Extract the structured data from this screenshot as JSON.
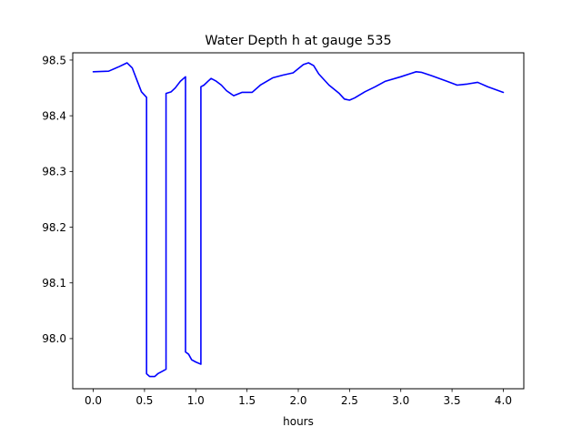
{
  "chart_data": {
    "type": "line",
    "title": "Water Depth h at gauge 535",
    "xlabel": "hours",
    "ylabel": "",
    "xlim": [
      -0.2,
      4.2
    ],
    "ylim": [
      97.91,
      98.513
    ],
    "xticks": [
      0.0,
      0.5,
      1.0,
      1.5,
      2.0,
      2.5,
      3.0,
      3.5,
      4.0
    ],
    "xtick_labels": [
      "0.0",
      "0.5",
      "1.0",
      "1.5",
      "2.0",
      "2.5",
      "3.0",
      "3.5",
      "4.0"
    ],
    "yticks": [
      98.0,
      98.1,
      98.2,
      98.3,
      98.4,
      98.5
    ],
    "ytick_labels": [
      "98.0",
      "98.1",
      "98.2",
      "98.3",
      "98.4",
      "98.5"
    ],
    "grid": false,
    "legend": "none",
    "series": [
      {
        "color": "#0000ff",
        "x": [
          0.0,
          0.15,
          0.25,
          0.33,
          0.38,
          0.43,
          0.47,
          0.52,
          0.52,
          0.55,
          0.6,
          0.63,
          0.67,
          0.71,
          0.71,
          0.76,
          0.8,
          0.85,
          0.9,
          0.9,
          0.93,
          0.96,
          1.0,
          1.05,
          1.05,
          1.08,
          1.12,
          1.15,
          1.2,
          1.25,
          1.3,
          1.37,
          1.45,
          1.55,
          1.63,
          1.75,
          1.85,
          1.95,
          2.05,
          2.1,
          2.15,
          2.2,
          2.3,
          2.4,
          2.45,
          2.5,
          2.55,
          2.65,
          2.75,
          2.85,
          3.0,
          3.1,
          3.15,
          3.2,
          3.3,
          3.45,
          3.55,
          3.65,
          3.75,
          3.85,
          4.0
        ],
        "y": [
          98.479,
          98.48,
          98.488,
          98.495,
          98.486,
          98.462,
          98.443,
          98.433,
          97.937,
          97.932,
          97.932,
          97.937,
          97.941,
          97.945,
          98.44,
          98.443,
          98.45,
          98.462,
          98.47,
          97.976,
          97.972,
          97.962,
          97.958,
          97.954,
          98.452,
          98.455,
          98.462,
          98.467,
          98.462,
          98.455,
          98.445,
          98.436,
          98.442,
          98.442,
          98.455,
          98.468,
          98.473,
          98.477,
          98.492,
          98.495,
          98.49,
          98.475,
          98.455,
          98.44,
          98.43,
          98.428,
          98.432,
          98.443,
          98.452,
          98.462,
          98.47,
          98.476,
          98.479,
          98.478,
          98.472,
          98.462,
          98.455,
          98.457,
          98.46,
          98.452,
          98.442
        ]
      }
    ]
  }
}
